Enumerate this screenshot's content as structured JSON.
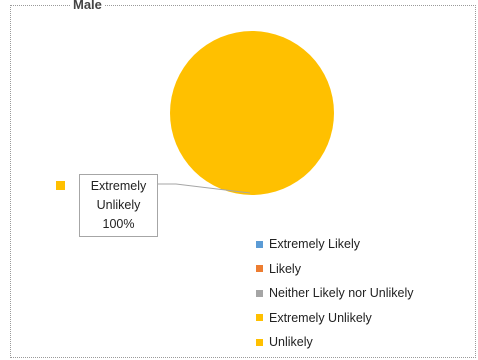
{
  "chart_data": {
    "type": "pie",
    "title": "Male",
    "categories": [
      "Extremely Likely",
      "Likely",
      "Neither Likely nor Unlikely",
      "Extremely Unlikely",
      "Unlikely"
    ],
    "values": [
      0,
      0,
      0,
      100,
      0
    ],
    "colors": [
      "#5B9BD5",
      "#ED7D31",
      "#A5A5A5",
      "#FFC000",
      "#FFC000"
    ],
    "legend_position": "bottom-right",
    "data_label": {
      "category_line1": "Extremely",
      "category_line2": "Unlikely",
      "percent": "100%"
    }
  }
}
